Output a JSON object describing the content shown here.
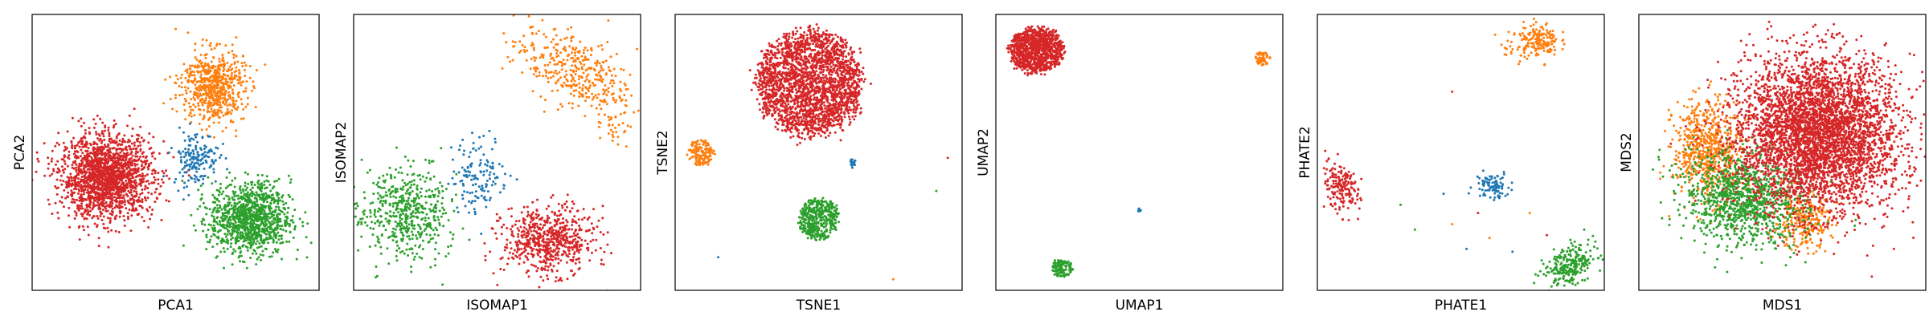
{
  "figure": {
    "colors": {
      "blue": "#1f77b4",
      "orange": "#ff7f0e",
      "green": "#2ca02c",
      "red": "#d62728"
    }
  },
  "chart_data": [
    {
      "type": "scatter",
      "xlabel": "PCA1",
      "ylabel": "PCA2",
      "xlim": [
        0,
        100
      ],
      "ylim": [
        0,
        100
      ],
      "ticks": false,
      "grid": false,
      "clusters": [
        {
          "color": "red",
          "count": 1800,
          "cx": 26,
          "cy": 41,
          "sx": 8,
          "sy": 7.5,
          "shape": "gauss"
        },
        {
          "color": "orange",
          "count": 650,
          "cx": 63,
          "cy": 74,
          "sx": 5.5,
          "sy": 6.5,
          "shape": "gauss"
        },
        {
          "color": "green",
          "count": 1100,
          "cx": 76,
          "cy": 26,
          "sx": 7,
          "sy": 6.5,
          "shape": "gauss"
        },
        {
          "color": "blue",
          "count": 170,
          "cx": 57,
          "cy": 48,
          "sx": 4,
          "sy": 5,
          "shape": "gauss"
        }
      ]
    },
    {
      "type": "scatter",
      "xlabel": "ISOMAP1",
      "ylabel": "ISOMAP2",
      "xlim": [
        0,
        100
      ],
      "ylim": [
        0,
        100
      ],
      "ticks": false,
      "grid": false,
      "clusters": [
        {
          "color": "orange",
          "count": 380,
          "cx": 76,
          "cy": 80,
          "sx": 11,
          "sy": 6,
          "rot": -25,
          "shape": "gauss"
        },
        {
          "color": "orange",
          "count": 40,
          "cx": 90,
          "cy": 62,
          "sx": 3,
          "sy": 6,
          "shape": "gauss"
        },
        {
          "color": "blue",
          "count": 140,
          "cx": 44,
          "cy": 42,
          "sx": 5,
          "sy": 7,
          "shape": "gauss"
        },
        {
          "color": "green",
          "count": 520,
          "cx": 18,
          "cy": 28,
          "sx": 8,
          "sy": 8,
          "rot": -35,
          "shape": "gauss"
        },
        {
          "color": "red",
          "count": 650,
          "cx": 68,
          "cy": 18,
          "sx": 8,
          "sy": 6,
          "shape": "gauss"
        }
      ]
    },
    {
      "type": "scatter",
      "xlabel": "TSNE1",
      "ylabel": "TSNE2",
      "xlim": [
        0,
        100
      ],
      "ylim": [
        0,
        100
      ],
      "ticks": false,
      "grid": false,
      "clusters": [
        {
          "color": "red",
          "count": 2300,
          "cx": 47,
          "cy": 75,
          "rx": 18,
          "ry": 19,
          "shape": "disc"
        },
        {
          "color": "orange",
          "count": 140,
          "cx": 9,
          "cy": 50,
          "rx": 4.5,
          "ry": 4.5,
          "shape": "disc"
        },
        {
          "color": "green",
          "count": 420,
          "cx": 50,
          "cy": 26,
          "rx": 7,
          "ry": 7.5,
          "shape": "disc"
        },
        {
          "color": "blue",
          "count": 24,
          "cx": 62,
          "cy": 46,
          "rx": 1.2,
          "ry": 1.6,
          "shape": "disc"
        }
      ],
      "outliers": [
        [
          95,
          48
        ],
        [
          91,
          36
        ],
        [
          15,
          12
        ],
        [
          76,
          4
        ]
      ]
    },
    {
      "type": "scatter",
      "xlabel": "UMAP1",
      "ylabel": "UMAP2",
      "xlim": [
        0,
        100
      ],
      "ylim": [
        0,
        100
      ],
      "ticks": false,
      "grid": false,
      "clusters": [
        {
          "color": "red",
          "count": 1000,
          "cx": 14,
          "cy": 87,
          "rx": 9.5,
          "ry": 8,
          "shape": "disc"
        },
        {
          "color": "orange",
          "count": 55,
          "cx": 93,
          "cy": 84,
          "rx": 2.5,
          "ry": 2.5,
          "shape": "disc"
        },
        {
          "color": "green",
          "count": 120,
          "cx": 23,
          "cy": 8,
          "rx": 3.8,
          "ry": 3.5,
          "shape": "disc"
        },
        {
          "color": "blue",
          "count": 8,
          "cx": 50,
          "cy": 29,
          "rx": 0.6,
          "ry": 0.8,
          "shape": "disc"
        }
      ]
    },
    {
      "type": "scatter",
      "xlabel": "PHATE1",
      "ylabel": "PHATE2",
      "xlim": [
        0,
        100
      ],
      "ylim": [
        0,
        100
      ],
      "ticks": false,
      "grid": false,
      "clusters": [
        {
          "color": "orange",
          "count": 160,
          "cx": 77,
          "cy": 91,
          "sx": 3.5,
          "sy": 3,
          "shape": "gauss"
        },
        {
          "color": "orange",
          "count": 25,
          "cx": 70,
          "cy": 86,
          "sx": 4,
          "sy": 3,
          "shape": "gauss"
        },
        {
          "color": "red",
          "count": 180,
          "cx": 9,
          "cy": 37,
          "sx": 3,
          "sy": 4.5,
          "rot": 20,
          "shape": "gauss"
        },
        {
          "color": "blue",
          "count": 90,
          "cx": 61,
          "cy": 38,
          "sx": 3,
          "sy": 2.5,
          "shape": "gauss"
        },
        {
          "color": "green",
          "count": 260,
          "cx": 88,
          "cy": 9,
          "sx": 5,
          "sy": 3,
          "rot": 25,
          "shape": "gauss"
        }
      ],
      "outliers": [
        [
          47,
          72
        ],
        [
          29,
          31
        ],
        [
          44,
          35
        ],
        [
          47,
          24
        ],
        [
          56,
          28
        ],
        [
          34,
          22
        ],
        [
          52,
          15
        ],
        [
          74,
          28
        ],
        [
          80,
          20
        ],
        [
          93,
          22
        ],
        [
          68,
          14
        ],
        [
          60,
          19
        ]
      ]
    },
    {
      "type": "scatter",
      "xlabel": "MDS1",
      "ylabel": "MDS2",
      "xlim": [
        0,
        100
      ],
      "ylim": [
        0,
        100
      ],
      "ticks": false,
      "grid": false,
      "clusters": [
        {
          "color": "orange",
          "count": 650,
          "cx": 24,
          "cy": 51,
          "sx": 6,
          "sy": 9,
          "shape": "gauss"
        },
        {
          "color": "orange",
          "count": 260,
          "cx": 57,
          "cy": 25,
          "sx": 5,
          "sy": 5,
          "shape": "gauss"
        },
        {
          "color": "green",
          "count": 1100,
          "cx": 37,
          "cy": 33,
          "sx": 11,
          "sy": 8,
          "rot": -15,
          "shape": "gauss"
        },
        {
          "color": "red",
          "count": 4200,
          "cx": 62,
          "cy": 57,
          "sx": 14,
          "sy": 14,
          "rot": -20,
          "shape": "gauss"
        }
      ]
    }
  ]
}
